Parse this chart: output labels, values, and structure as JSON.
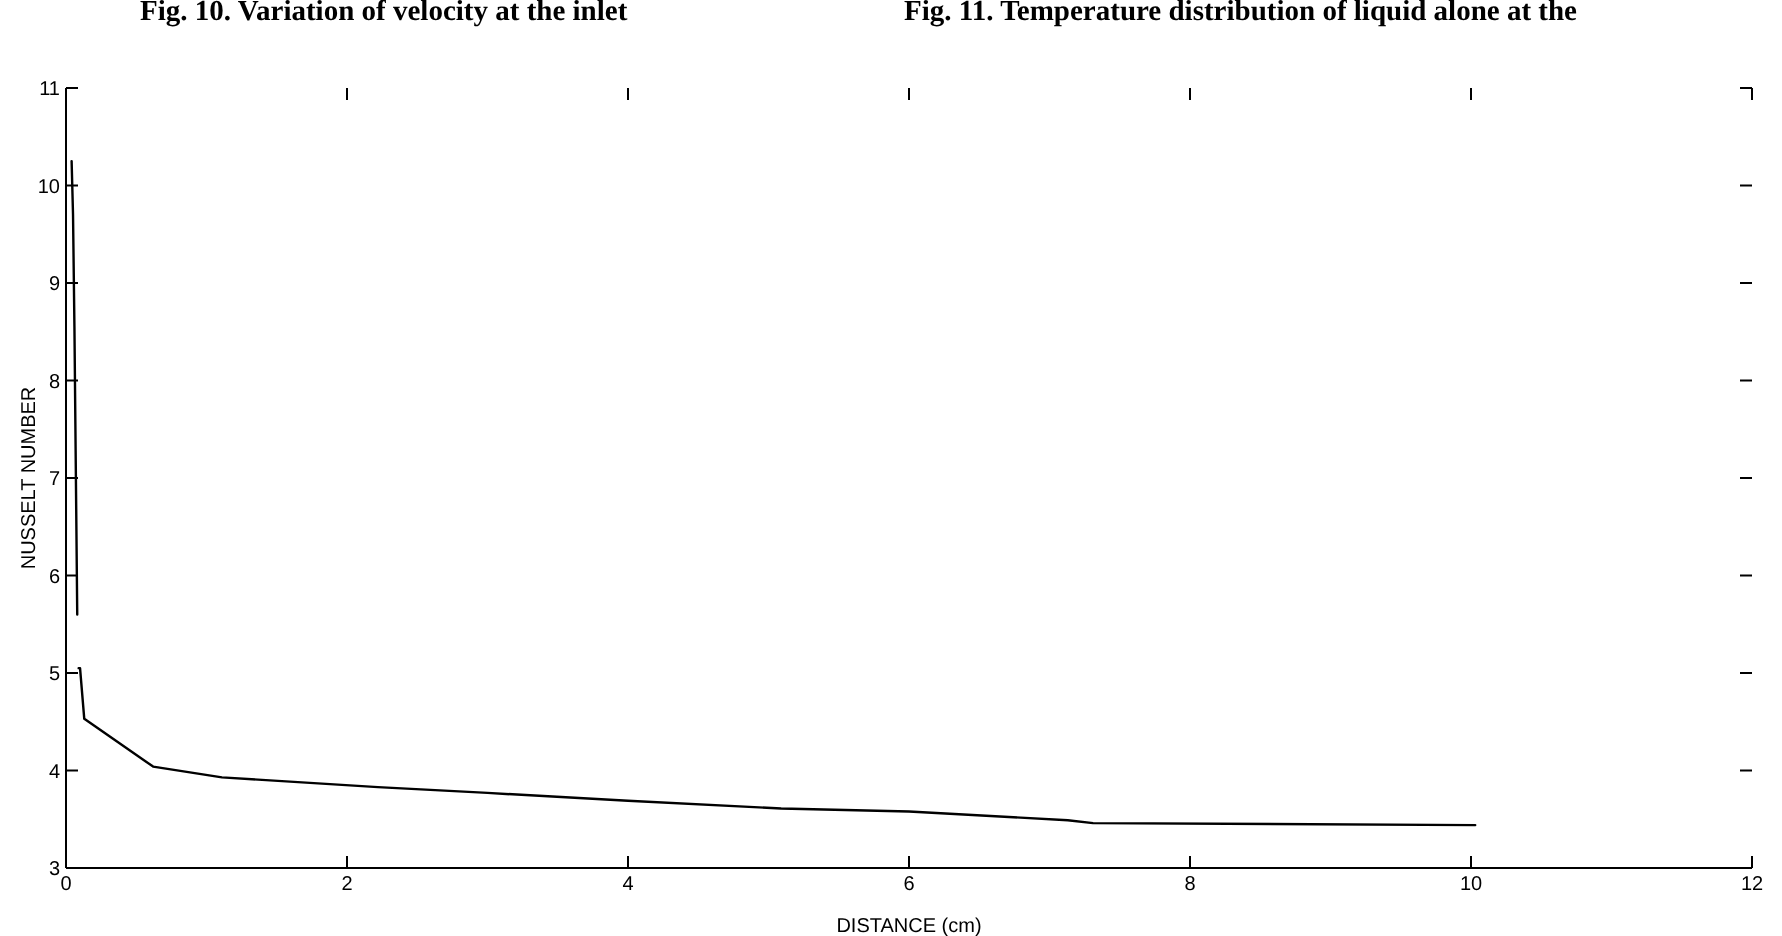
{
  "chart_data": {
    "type": "line",
    "xlabel": "DISTANCE (cm)",
    "ylabel": "NUSSELT NUMBER",
    "annotations": [
      "Fig. 10. Variation of velocity at the inlet",
      "Fig. 11. Temperature distribution of liquid alone at the"
    ],
    "series": [
      {
        "color": "#000000",
        "x": [
          0.04,
          0.05,
          0.06,
          0.08
        ],
        "values": [
          10.25,
          9.7,
          8.55,
          5.6
        ]
      },
      {
        "color": "#000000",
        "x": [
          0.09,
          0.1,
          0.13,
          0.62,
          1.11,
          2.22,
          3.0,
          4.0,
          5.09,
          6.0,
          7.13,
          7.31,
          10.03
        ],
        "values": [
          5.05,
          5.05,
          4.53,
          4.04,
          3.93,
          3.83,
          3.77,
          3.69,
          3.61,
          3.58,
          3.49,
          3.46,
          3.44
        ]
      }
    ],
    "line_style": "solid",
    "xlim": [
      0,
      12
    ],
    "xticks": [
      0,
      2,
      4,
      6,
      8,
      10,
      12
    ],
    "ylim": [
      3,
      11
    ],
    "yticks": [
      3,
      4,
      5,
      6,
      7,
      8,
      9,
      10,
      11
    ]
  }
}
